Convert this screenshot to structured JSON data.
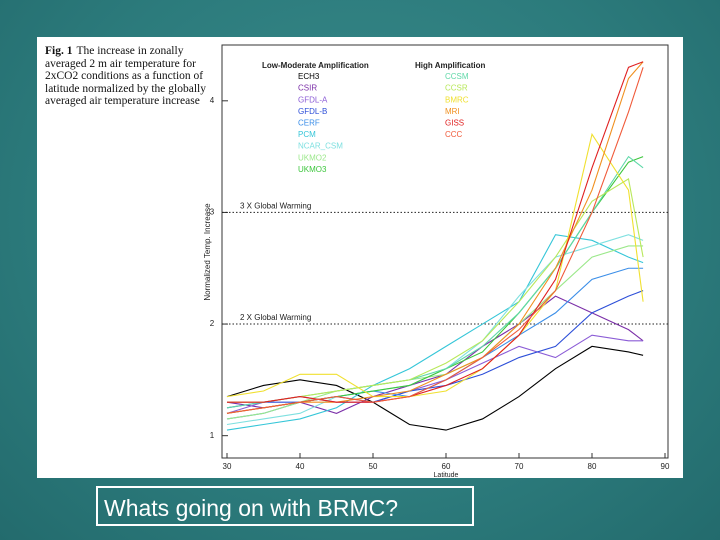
{
  "chart_data": {
    "type": "line",
    "figure_label": "Fig. 1",
    "title": "The increase in zonally averaged 2 m air temperature for 2xCO2 conditions as a function of latitude normalized by the globally averaged air temperature increase",
    "xlabel": "Latitude",
    "ylabel": "Normalized Temp. Increase",
    "xlim": [
      30,
      90
    ],
    "xticks": [
      30,
      40,
      50,
      60,
      70,
      80,
      90
    ],
    "ylim": [
      0.8,
      4.5
    ],
    "yticks": [
      1,
      2,
      3,
      4
    ],
    "x": [
      30,
      35,
      40,
      45,
      50,
      55,
      60,
      65,
      70,
      75,
      80,
      85,
      87
    ],
    "reference_lines": [
      {
        "value": 3,
        "label": "3 X Global Warming"
      },
      {
        "value": 2,
        "label": "2 X Global Warming"
      }
    ],
    "legend_groups": [
      "Low-Moderate Amplification",
      "High Amplification"
    ],
    "series": [
      {
        "name": "ECH3",
        "group": 0,
        "color": "#000000",
        "values": [
          1.35,
          1.45,
          1.5,
          1.45,
          1.3,
          1.1,
          1.05,
          1.15,
          1.35,
          1.6,
          1.8,
          1.75,
          1.72
        ]
      },
      {
        "name": "CSIR",
        "group": 0,
        "color": "#7b2fa8",
        "values": [
          1.3,
          1.25,
          1.3,
          1.2,
          1.35,
          1.45,
          1.55,
          1.8,
          2.0,
          2.25,
          2.1,
          1.95,
          1.85
        ]
      },
      {
        "name": "GFDL-A",
        "group": 0,
        "color": "#8b5cd6",
        "values": [
          1.2,
          1.3,
          1.35,
          1.3,
          1.3,
          1.4,
          1.5,
          1.65,
          1.8,
          1.7,
          1.9,
          1.85,
          1.85
        ]
      },
      {
        "name": "GFDL-B",
        "group": 0,
        "color": "#2d4fd8",
        "values": [
          1.25,
          1.3,
          1.3,
          1.35,
          1.3,
          1.4,
          1.45,
          1.55,
          1.7,
          1.8,
          2.1,
          2.25,
          2.3
        ]
      },
      {
        "name": "CERF",
        "group": 0,
        "color": "#3b8ee8",
        "values": [
          1.15,
          1.2,
          1.3,
          1.35,
          1.4,
          1.35,
          1.5,
          1.7,
          1.9,
          2.1,
          2.4,
          2.5,
          2.5
        ]
      },
      {
        "name": "PCM",
        "group": 0,
        "color": "#35c6d8",
        "values": [
          1.05,
          1.1,
          1.15,
          1.25,
          1.45,
          1.6,
          1.8,
          2.0,
          2.2,
          2.8,
          2.75,
          2.6,
          2.55
        ]
      },
      {
        "name": "NCAR_CSM",
        "group": 0,
        "color": "#7fe0e0",
        "values": [
          1.1,
          1.15,
          1.2,
          1.35,
          1.4,
          1.45,
          1.6,
          1.85,
          2.25,
          2.6,
          2.7,
          2.8,
          2.75
        ]
      },
      {
        "name": "UKMO2",
        "group": 0,
        "color": "#9be88a",
        "values": [
          1.15,
          1.2,
          1.3,
          1.4,
          1.45,
          1.5,
          1.55,
          1.7,
          2.0,
          2.3,
          2.6,
          2.7,
          2.7
        ]
      },
      {
        "name": "UKMO3",
        "group": 0,
        "color": "#3cc63c",
        "values": [
          1.2,
          1.25,
          1.3,
          1.35,
          1.4,
          1.45,
          1.6,
          1.75,
          2.1,
          2.5,
          3.0,
          3.45,
          3.5
        ]
      },
      {
        "name": "CCSM",
        "group": 1,
        "color": "#5fd8a8",
        "values": [
          1.25,
          1.3,
          1.35,
          1.4,
          1.45,
          1.5,
          1.6,
          1.8,
          2.1,
          2.5,
          3.0,
          3.5,
          3.4
        ]
      },
      {
        "name": "CCSR",
        "group": 1,
        "color": "#b8e85a",
        "values": [
          1.3,
          1.3,
          1.35,
          1.4,
          1.45,
          1.5,
          1.65,
          1.85,
          2.2,
          2.6,
          3.1,
          3.3,
          2.6
        ]
      },
      {
        "name": "BMRC",
        "group": 1,
        "color": "#f0e030",
        "values": [
          1.35,
          1.4,
          1.55,
          1.55,
          1.35,
          1.35,
          1.4,
          1.6,
          1.9,
          2.3,
          3.7,
          3.2,
          2.2
        ]
      },
      {
        "name": "MRI",
        "group": 1,
        "color": "#f09020",
        "values": [
          1.2,
          1.25,
          1.3,
          1.3,
          1.35,
          1.4,
          1.55,
          1.7,
          2.0,
          2.5,
          3.2,
          4.2,
          4.35
        ]
      },
      {
        "name": "GISS",
        "group": 1,
        "color": "#e02020",
        "values": [
          1.3,
          1.3,
          1.35,
          1.3,
          1.3,
          1.35,
          1.45,
          1.6,
          1.9,
          2.4,
          3.4,
          4.3,
          4.35
        ]
      },
      {
        "name": "CCC",
        "group": 1,
        "color": "#f05a3a",
        "values": [
          1.2,
          1.25,
          1.3,
          1.35,
          1.3,
          1.35,
          1.5,
          1.7,
          1.95,
          2.3,
          3.0,
          3.9,
          4.3
        ]
      }
    ]
  },
  "slide_caption": "Whats going on with BRMC?"
}
